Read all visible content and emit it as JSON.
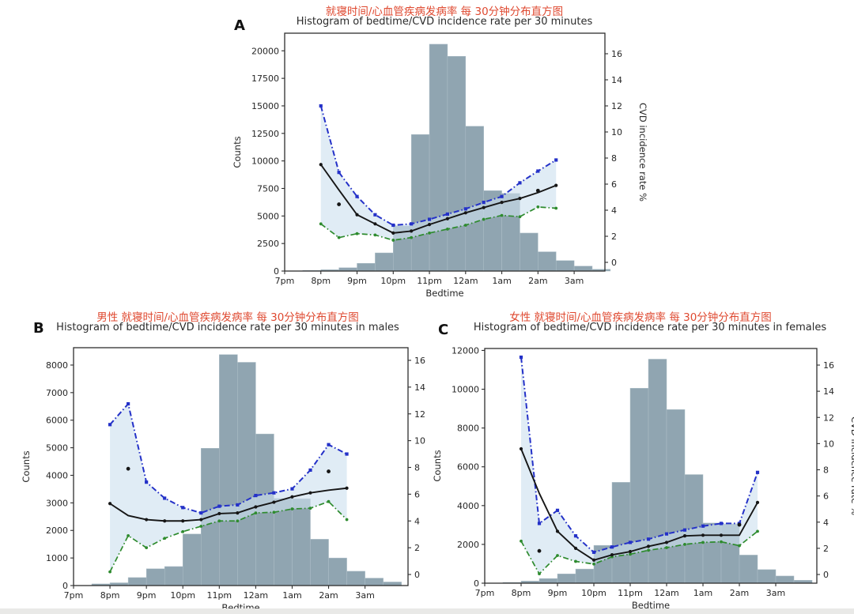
{
  "page": {
    "background": "#ffffff"
  },
  "colors": {
    "bar": "#90a5b1",
    "bar_edge": "#aebfc8",
    "band": "#cde0ef",
    "mean_line": "#161616",
    "upper_line": "#2431c8",
    "lower_line": "#2e8b2e",
    "red_title": "#df4930",
    "axis_text": "#262626",
    "frame": "#2e2e2e"
  },
  "charts": [
    {
      "panel": "A",
      "red_title": "就寝时间/心血管疾病发病率 每 30分钟分布直方图",
      "title": "Histogram of bedtime/CVD incidence rate per 30 minutes",
      "x_axis": {
        "label": "Bedtime",
        "ticks": [
          "7pm",
          "8pm",
          "9pm",
          "10pm",
          "11pm",
          "12am",
          "1am",
          "2am",
          "3am"
        ]
      },
      "left_axis": {
        "label": "Counts",
        "ticks": [
          0,
          2500,
          5000,
          7500,
          10000,
          12500,
          15000,
          17500,
          20000
        ]
      },
      "right_axis": {
        "label": "CVD incidence rate %",
        "ticks": [
          0,
          2,
          4,
          6,
          8,
          10,
          12,
          14,
          16
        ]
      },
      "chart_data": {
        "type": "bar",
        "bin_width_hours": 0.5,
        "bar_start_times": [
          "7:30pm",
          "8:00pm",
          "8:30pm",
          "9:00pm",
          "9:30pm",
          "10:00pm",
          "10:30pm",
          "11:00pm",
          "11:30pm",
          "12:00am",
          "12:30am",
          "1:00am",
          "1:30am",
          "2:00am",
          "2:30am",
          "3:00am",
          "3:30am"
        ],
        "bar_counts": [
          60,
          120,
          300,
          700,
          1650,
          4100,
          12400,
          20600,
          19500,
          13150,
          7300,
          7050,
          3450,
          1750,
          950,
          450,
          160
        ],
        "line_times": [
          "8:00pm",
          "8:30pm",
          "9:00pm",
          "9:30pm",
          "10:00pm",
          "10:30pm",
          "11:00pm",
          "11:30pm",
          "12:00am",
          "12:30am",
          "1:00am",
          "1:30am",
          "2:00am",
          "2:30am"
        ],
        "series": [
          {
            "name": "CVD incidence rate (mean)",
            "values": [
              7.5,
              5.55,
              3.65,
              2.95,
              2.25,
              2.4,
              2.9,
              3.35,
              3.8,
              4.2,
              4.6,
              4.9,
              5.35,
              5.9
            ]
          },
          {
            "name": "upper bound",
            "values": [
              12.0,
              6.9,
              5.05,
              3.65,
              2.85,
              2.95,
              3.3,
              3.7,
              4.1,
              4.6,
              5.05,
              6.1,
              7.0,
              7.85
            ]
          },
          {
            "name": "lower bound",
            "values": [
              2.95,
              1.9,
              2.2,
              2.1,
              1.7,
              1.9,
              2.25,
              2.55,
              2.85,
              3.3,
              3.6,
              3.5,
              4.25,
              4.15
            ]
          }
        ],
        "scatter_dots": [
          {
            "time": "8:30pm",
            "rate": 4.45
          },
          {
            "time": "2:00am",
            "rate": 5.5
          }
        ],
        "ylim_left": [
          0,
          21600
        ],
        "ylim_right": [
          0,
          16
        ],
        "grid": false,
        "legend": "none"
      }
    },
    {
      "panel": "B",
      "red_title": "男性 就寝时间/心血管疾病发病率 每 30分钟分布直方图",
      "title": "Histogram of bedtime/CVD incidence rate per 30 minutes in males",
      "x_axis": {
        "label": "Bedtime",
        "ticks": [
          "7pm",
          "8pm",
          "9pm",
          "10pm",
          "11pm",
          "12am",
          "1am",
          "2am",
          "3am"
        ]
      },
      "left_axis": {
        "label": "Counts",
        "ticks": [
          0,
          1000,
          2000,
          3000,
          4000,
          5000,
          6000,
          7000,
          8000
        ]
      },
      "right_axis": {
        "label": "CVD incidence rate %",
        "ticks": [
          0,
          2,
          4,
          6,
          8,
          10,
          12,
          14,
          16
        ]
      },
      "chart_data": {
        "type": "bar",
        "bin_width_hours": 0.5,
        "bar_start_times": [
          "7:30pm",
          "8:00pm",
          "8:30pm",
          "9:00pm",
          "9:30pm",
          "10:00pm",
          "10:30pm",
          "11:00pm",
          "11:30pm",
          "12:00am",
          "12:30am",
          "1:00am",
          "1:30am",
          "2:00am",
          "2:30am",
          "3:00am",
          "3:30am"
        ],
        "bar_counts": [
          60,
          100,
          290,
          610,
          690,
          1870,
          4980,
          8380,
          8100,
          5500,
          3160,
          3150,
          1680,
          1000,
          520,
          270,
          130
        ],
        "line_times": [
          "8:00pm",
          "8:30pm",
          "9:00pm",
          "9:30pm",
          "10:00pm",
          "10:30pm",
          "11:00pm",
          "11:30pm",
          "12:00am",
          "12:30am",
          "1:00am",
          "1:30am",
          "2:00am",
          "2:30am"
        ],
        "series": [
          {
            "name": "CVD incidence rate (mean)",
            "values": [
              5.3,
              4.4,
              4.1,
              4.0,
              4.0,
              4.1,
              4.55,
              4.6,
              5.05,
              5.4,
              5.8,
              6.1,
              6.3,
              6.45
            ]
          },
          {
            "name": "upper bound",
            "values": [
              11.2,
              12.75,
              6.9,
              5.7,
              5.0,
              4.6,
              5.1,
              5.2,
              5.9,
              6.1,
              6.4,
              7.8,
              9.7,
              9.0
            ]
          },
          {
            "name": "lower bound",
            "values": [
              0.2,
              2.9,
              2.0,
              2.7,
              3.2,
              3.6,
              4.0,
              4.0,
              4.6,
              4.65,
              4.9,
              4.95,
              5.45,
              4.1
            ]
          }
        ],
        "scatter_dots": [
          {
            "time": "8:30pm",
            "rate": 7.9
          },
          {
            "time": "2:00am",
            "rate": 7.7
          }
        ],
        "ylim_left": [
          0,
          8630
        ],
        "ylim_right": [
          0,
          16
        ],
        "grid": false,
        "legend": "none"
      }
    },
    {
      "panel": "C",
      "red_title": "女性 就寝时间/心血管疾病发病率 每 30分钟分布直方图",
      "title": "Histogram of bedtime/CVD incidence rate per 30 minutes in females",
      "x_axis": {
        "label": "Bedtime",
        "ticks": [
          "7pm",
          "8pm",
          "9pm",
          "10pm",
          "11pm",
          "12am",
          "1am",
          "2am",
          "3am"
        ]
      },
      "left_axis": {
        "label": "Counts",
        "ticks": [
          0,
          2000,
          4000,
          6000,
          8000,
          10000,
          12000
        ]
      },
      "right_axis": {
        "label": "CVD incidence rate %",
        "ticks": [
          0,
          2,
          4,
          6,
          8,
          10,
          12,
          14,
          16
        ]
      },
      "chart_data": {
        "type": "bar",
        "bin_width_hours": 0.5,
        "bar_start_times": [
          "7:30pm",
          "8:00pm",
          "8:30pm",
          "9:00pm",
          "9:30pm",
          "10:00pm",
          "10:30pm",
          "11:00pm",
          "11:30pm",
          "12:00am",
          "12:30am",
          "1:00am",
          "1:30am",
          "2:00am",
          "2:30am",
          "3:00am",
          "3:30am"
        ],
        "bar_counts": [
          40,
          110,
          240,
          480,
          730,
          1950,
          5200,
          10050,
          11550,
          8950,
          5600,
          3100,
          3060,
          1450,
          700,
          370,
          150
        ],
        "line_times": [
          "8:00pm",
          "8:30pm",
          "9:00pm",
          "9:30pm",
          "10:00pm",
          "10:30pm",
          "11:00pm",
          "11:30pm",
          "12:00am",
          "12:30am",
          "1:00am",
          "1:30am",
          "2:00am",
          "2:30am"
        ],
        "series": [
          {
            "name": "CVD incidence rate (mean)",
            "values": [
              9.6,
              6.2,
              3.3,
              2.0,
              1.1,
              1.5,
              1.75,
              2.15,
              2.45,
              2.95,
              3.0,
              3.0,
              3.0,
              5.5
            ]
          },
          {
            "name": "upper bound",
            "values": [
              16.6,
              3.9,
              4.9,
              2.95,
              1.7,
              2.1,
              2.45,
              2.7,
              3.1,
              3.4,
              3.7,
              3.9,
              3.9,
              7.8
            ]
          },
          {
            "name": "lower bound",
            "values": [
              2.55,
              0.05,
              1.45,
              1.0,
              0.8,
              1.35,
              1.55,
              1.85,
              2.05,
              2.3,
              2.45,
              2.5,
              2.2,
              3.3
            ]
          }
        ],
        "scatter_dots": [
          {
            "time": "8:30pm",
            "rate": 1.8
          },
          {
            "time": "2:00am",
            "rate": 3.8
          }
        ],
        "ylim_left": [
          0,
          12100
        ],
        "ylim_right": [
          0,
          16
        ],
        "grid": false,
        "legend": "none"
      }
    }
  ]
}
